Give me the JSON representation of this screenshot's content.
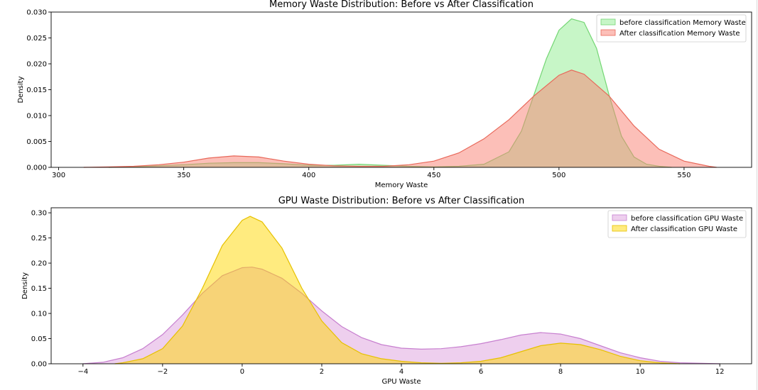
{
  "chart_data": [
    {
      "type": "area",
      "title": "Memory Waste Distribution: Before vs After Classification",
      "xlabel": "Memory Waste",
      "ylabel": "Density",
      "xlim": [
        297,
        577
      ],
      "ylim": [
        0,
        0.03
      ],
      "xticks": [
        300,
        350,
        400,
        450,
        500,
        550
      ],
      "xtick_labels": [
        "300",
        "350",
        "400",
        "450",
        "500",
        "550"
      ],
      "yticks": [
        0.0,
        0.005,
        0.01,
        0.015,
        0.02,
        0.025,
        0.03
      ],
      "ytick_labels": [
        "0.000",
        "0.005",
        "0.010",
        "0.015",
        "0.020",
        "0.025",
        "0.030"
      ],
      "grid": false,
      "legend_position": "top-right",
      "series": [
        {
          "name": "before classification Memory Waste",
          "fill": "#90ee90",
          "line": "#74d674",
          "points": [
            [
              320,
              0.0
            ],
            [
              330,
              0.0001
            ],
            [
              340,
              0.0003
            ],
            [
              350,
              0.0005
            ],
            [
              360,
              0.0008
            ],
            [
              370,
              0.0009
            ],
            [
              380,
              0.0009
            ],
            [
              390,
              0.0007
            ],
            [
              400,
              0.0004
            ],
            [
              410,
              0.0004
            ],
            [
              420,
              0.0006
            ],
            [
              430,
              0.0004
            ],
            [
              440,
              0.0002
            ],
            [
              450,
              0.0001
            ],
            [
              460,
              0.0002
            ],
            [
              470,
              0.0006
            ],
            [
              480,
              0.003
            ],
            [
              485,
              0.007
            ],
            [
              490,
              0.014
            ],
            [
              495,
              0.021
            ],
            [
              500,
              0.0265
            ],
            [
              505,
              0.0287
            ],
            [
              510,
              0.028
            ],
            [
              515,
              0.023
            ],
            [
              520,
              0.014
            ],
            [
              525,
              0.006
            ],
            [
              530,
              0.002
            ],
            [
              535,
              0.0006
            ],
            [
              540,
              0.0002
            ],
            [
              545,
              0.0
            ]
          ]
        },
        {
          "name": "After classification Memory Waste",
          "fill": "#fa8072",
          "line": "#e8685a",
          "points": [
            [
              310,
              0.0
            ],
            [
              320,
              0.0001
            ],
            [
              330,
              0.0002
            ],
            [
              340,
              0.0005
            ],
            [
              350,
              0.001
            ],
            [
              360,
              0.0018
            ],
            [
              370,
              0.0022
            ],
            [
              380,
              0.002
            ],
            [
              390,
              0.0012
            ],
            [
              400,
              0.0006
            ],
            [
              410,
              0.0003
            ],
            [
              420,
              0.0002
            ],
            [
              430,
              0.0002
            ],
            [
              440,
              0.0005
            ],
            [
              450,
              0.0012
            ],
            [
              460,
              0.0028
            ],
            [
              470,
              0.0055
            ],
            [
              480,
              0.0092
            ],
            [
              490,
              0.0138
            ],
            [
              500,
              0.0178
            ],
            [
              505,
              0.0188
            ],
            [
              510,
              0.018
            ],
            [
              520,
              0.0138
            ],
            [
              530,
              0.008
            ],
            [
              540,
              0.0035
            ],
            [
              550,
              0.0012
            ],
            [
              560,
              0.0002
            ],
            [
              563,
              0.0
            ]
          ]
        }
      ]
    },
    {
      "type": "area",
      "title": "GPU Waste Distribution: Before vs After Classification",
      "xlabel": "GPU Waste",
      "ylabel": "Density",
      "xlim": [
        -4.8,
        12.8
      ],
      "ylim": [
        0,
        0.31
      ],
      "xticks": [
        -4,
        -2,
        0,
        2,
        4,
        6,
        8,
        10,
        12
      ],
      "xtick_labels": [
        "−4",
        "−2",
        "0",
        "2",
        "4",
        "6",
        "8",
        "10",
        "12"
      ],
      "yticks": [
        0.0,
        0.05,
        0.1,
        0.15,
        0.2,
        0.25,
        0.3
      ],
      "ytick_labels": [
        "0.00",
        "0.05",
        "0.10",
        "0.15",
        "0.20",
        "0.25",
        "0.30"
      ],
      "grid": false,
      "legend_position": "top-right",
      "series": [
        {
          "name": "before classification GPU Waste",
          "fill": "#dda0dd",
          "line": "#c77fcf",
          "points": [
            [
              -4,
              0.0
            ],
            [
              -3.5,
              0.003
            ],
            [
              -3,
              0.012
            ],
            [
              -2.5,
              0.03
            ],
            [
              -2,
              0.058
            ],
            [
              -1.5,
              0.097
            ],
            [
              -1,
              0.14
            ],
            [
              -0.5,
              0.175
            ],
            [
              0,
              0.191
            ],
            [
              0.25,
              0.192
            ],
            [
              0.5,
              0.188
            ],
            [
              1,
              0.17
            ],
            [
              1.5,
              0.14
            ],
            [
              2,
              0.105
            ],
            [
              2.5,
              0.074
            ],
            [
              3,
              0.052
            ],
            [
              3.5,
              0.038
            ],
            [
              4,
              0.031
            ],
            [
              4.5,
              0.029
            ],
            [
              5,
              0.03
            ],
            [
              5.5,
              0.034
            ],
            [
              6,
              0.04
            ],
            [
              6.5,
              0.048
            ],
            [
              7,
              0.057
            ],
            [
              7.5,
              0.062
            ],
            [
              8,
              0.059
            ],
            [
              8.5,
              0.05
            ],
            [
              9,
              0.036
            ],
            [
              9.5,
              0.022
            ],
            [
              10,
              0.012
            ],
            [
              10.5,
              0.005
            ],
            [
              11,
              0.002
            ],
            [
              12,
              0.0
            ]
          ]
        },
        {
          "name": "After classification GPU Waste",
          "fill": "#ffd700",
          "line": "#e6c100",
          "points": [
            [
              -3.2,
              0.0
            ],
            [
              -3,
              0.002
            ],
            [
              -2.5,
              0.01
            ],
            [
              -2,
              0.03
            ],
            [
              -1.5,
              0.075
            ],
            [
              -1,
              0.15
            ],
            [
              -0.5,
              0.235
            ],
            [
              0,
              0.285
            ],
            [
              0.2,
              0.293
            ],
            [
              0.5,
              0.282
            ],
            [
              1,
              0.23
            ],
            [
              1.5,
              0.15
            ],
            [
              2,
              0.085
            ],
            [
              2.5,
              0.042
            ],
            [
              3,
              0.02
            ],
            [
              3.5,
              0.01
            ],
            [
              4,
              0.005
            ],
            [
              4.5,
              0.002
            ],
            [
              5,
              0.001
            ],
            [
              5.5,
              0.002
            ],
            [
              6,
              0.005
            ],
            [
              6.5,
              0.012
            ],
            [
              7,
              0.024
            ],
            [
              7.5,
              0.036
            ],
            [
              8,
              0.041
            ],
            [
              8.5,
              0.038
            ],
            [
              9,
              0.028
            ],
            [
              9.5,
              0.015
            ],
            [
              10,
              0.006
            ],
            [
              10.5,
              0.002
            ],
            [
              11,
              0.0
            ]
          ]
        }
      ]
    }
  ]
}
